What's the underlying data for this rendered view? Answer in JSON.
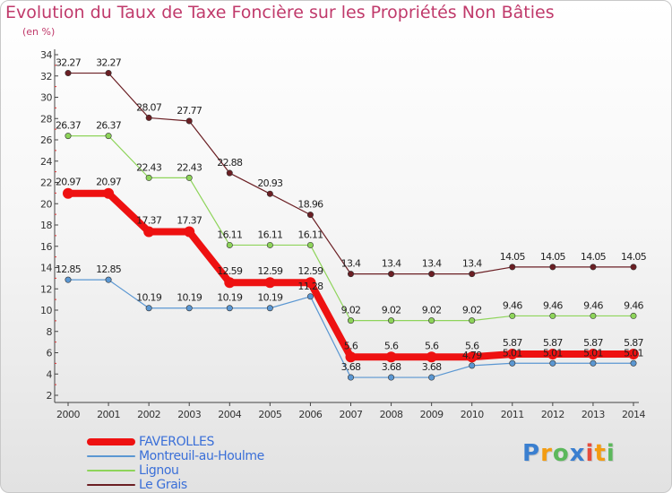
{
  "title": "Evolution du Taux de Taxe Foncière sur les Propriétés Non Bâties",
  "unit_label": "(en %)",
  "chart_data": {
    "type": "line",
    "x": [
      2000,
      2001,
      2002,
      2003,
      2004,
      2005,
      2006,
      2007,
      2008,
      2009,
      2010,
      2011,
      2012,
      2013,
      2014
    ],
    "ylim": [
      2,
      34
    ],
    "yticks": [
      2,
      4,
      6,
      8,
      10,
      12,
      14,
      16,
      18,
      20,
      22,
      24,
      26,
      28,
      30,
      32,
      34
    ],
    "grid": false,
    "legend_position": "bottom-left",
    "series": [
      {
        "name": "Le Grais",
        "color": "#6b1f24",
        "width": 1.2,
        "values": [
          32.27,
          32.27,
          28.07,
          27.77,
          22.88,
          20.93,
          18.96,
          13.4,
          13.4,
          13.4,
          13.4,
          14.05,
          14.05,
          14.05,
          14.05
        ],
        "labels": [
          "32.27",
          "32.27",
          "28.07",
          "27.77",
          "22.88",
          "20.93",
          "18.96",
          "13.4",
          "13.4",
          "13.4",
          "13.4",
          "14.05",
          "14.05",
          "14.05",
          "14.05"
        ]
      },
      {
        "name": "Lignou",
        "color": "#8ed45a",
        "width": 1.2,
        "values": [
          26.37,
          26.37,
          22.43,
          22.43,
          16.11,
          16.11,
          16.11,
          9.02,
          9.02,
          9.02,
          9.02,
          9.46,
          9.46,
          9.46,
          9.46
        ],
        "labels": [
          "26.37",
          "26.37",
          "22.43",
          "22.43",
          "16.11",
          "16.11",
          "16.11",
          "9.02",
          "9.02",
          "9.02",
          "9.02",
          "9.46",
          "9.46",
          "9.46",
          "9.46"
        ]
      },
      {
        "name": "Montreuil-au-Houlme",
        "color": "#5b97d2",
        "width": 1.2,
        "values": [
          12.85,
          12.85,
          10.19,
          10.19,
          10.19,
          10.19,
          11.28,
          3.68,
          3.68,
          3.68,
          4.79,
          5.01,
          5.01,
          5.01,
          5.01
        ],
        "labels": [
          "12.85",
          "12.85",
          "10.19",
          "10.19",
          "10.19",
          "10.19",
          "11.28",
          "3.68",
          "3.68",
          "3.68",
          "4.79",
          "5.01",
          "5.01",
          "5.01",
          "5.01"
        ]
      },
      {
        "name": "FAVEROLLES",
        "color": "#ee1111",
        "width": 8,
        "values": [
          20.97,
          20.97,
          17.37,
          17.37,
          12.59,
          12.59,
          12.59,
          5.6,
          5.6,
          5.6,
          5.6,
          5.87,
          5.87,
          5.87,
          5.87
        ],
        "labels": [
          "20.97",
          "20.97",
          "17.37",
          "17.37",
          "12.59",
          "12.59",
          "12.59",
          "5.6",
          "5.6",
          "5.6",
          "5.6",
          "5.87",
          "5.87",
          "5.87",
          "5.87"
        ]
      }
    ]
  },
  "legend": [
    {
      "label": "FAVEROLLES",
      "color": "#ee1111",
      "thickness": 8
    },
    {
      "label": "Montreuil-au-Houlme",
      "color": "#5b97d2",
      "thickness": 2
    },
    {
      "label": "Lignou",
      "color": "#8ed45a",
      "thickness": 2
    },
    {
      "label": "Le Grais",
      "color": "#6b1f24",
      "thickness": 2
    }
  ],
  "logo": {
    "letters": [
      "P",
      "r",
      "o",
      "x",
      "i",
      "t",
      "i"
    ],
    "colors": [
      "#3a7fd0",
      "#f39c12",
      "#5cb85c",
      "#3a7fd0",
      "#e74c3c",
      "#f39c12",
      "#5cb85c"
    ]
  }
}
